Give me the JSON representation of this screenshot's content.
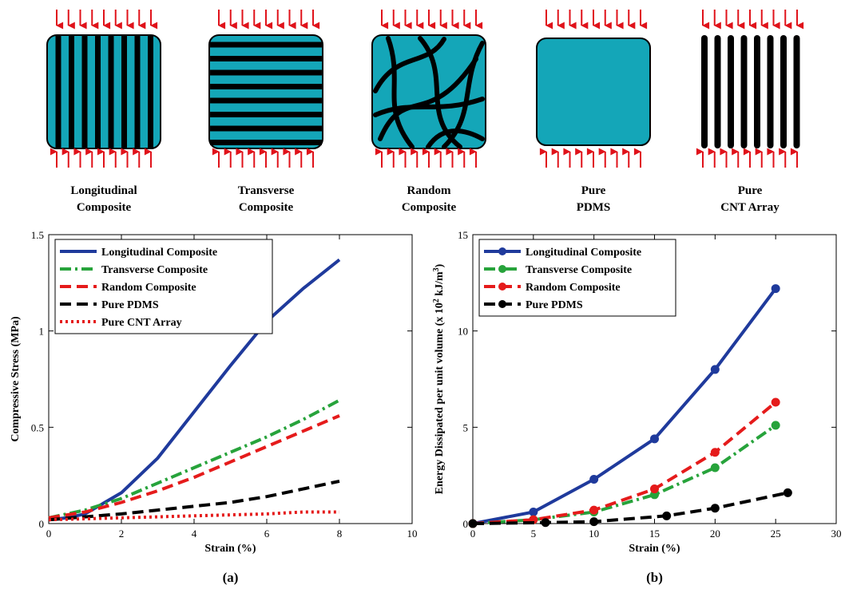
{
  "schematics": [
    {
      "line1": "Longitudinal",
      "line2": "Composite"
    },
    {
      "line1": "Transverse",
      "line2": "Composite"
    },
    {
      "line1": "Random",
      "line2": "Composite"
    },
    {
      "line1": "Pure",
      "line2": "PDMS"
    },
    {
      "line1": "Pure",
      "line2": "CNT Array"
    }
  ],
  "colors": {
    "teal": "#14a6b8",
    "arrow": "#e0121a",
    "blue": "#1f3a9c",
    "green": "#27a33b",
    "red": "#e51b1b",
    "black": "#000000"
  },
  "chart_data": [
    {
      "type": "line",
      "panel_label": "(a)",
      "xlabel": "Strain (%)",
      "ylabel": "Compressive Stress (MPa)",
      "xlim": [
        0,
        10
      ],
      "ylim": [
        0,
        1.5
      ],
      "xticks": [
        0,
        2,
        4,
        6,
        8,
        10
      ],
      "yticks": [
        0,
        0.5,
        1,
        1.5
      ],
      "ytick_labels": [
        "0",
        "0.5",
        "1",
        "1.5"
      ],
      "legend_position": "top-left",
      "series": [
        {
          "name": "Longitudinal Composite",
          "color": "#1f3a9c",
          "dash": "solid",
          "markers": false,
          "points": [
            [
              0,
              0.02
            ],
            [
              0.5,
              0.03
            ],
            [
              1,
              0.05
            ],
            [
              2,
              0.16
            ],
            [
              3,
              0.34
            ],
            [
              4,
              0.58
            ],
            [
              5,
              0.82
            ],
            [
              6,
              1.05
            ],
            [
              7,
              1.22
            ],
            [
              8,
              1.37
            ]
          ]
        },
        {
          "name": "Transverse Composite",
          "color": "#27a33b",
          "dash": "dashdot",
          "markers": false,
          "points": [
            [
              0,
              0.03
            ],
            [
              1,
              0.07
            ],
            [
              2,
              0.13
            ],
            [
              3,
              0.21
            ],
            [
              4,
              0.29
            ],
            [
              5,
              0.37
            ],
            [
              6,
              0.45
            ],
            [
              7,
              0.54
            ],
            [
              8,
              0.64
            ]
          ]
        },
        {
          "name": "Random Composite",
          "color": "#e51b1b",
          "dash": "dashed",
          "markers": false,
          "points": [
            [
              0,
              0.03
            ],
            [
              1,
              0.06
            ],
            [
              2,
              0.11
            ],
            [
              3,
              0.17
            ],
            [
              4,
              0.24
            ],
            [
              5,
              0.32
            ],
            [
              6,
              0.4
            ],
            [
              7,
              0.48
            ],
            [
              8,
              0.56
            ]
          ]
        },
        {
          "name": "Pure PDMS",
          "color": "#000000",
          "dash": "dashed",
          "markers": false,
          "points": [
            [
              0,
              0.02
            ],
            [
              2,
              0.05
            ],
            [
              3,
              0.07
            ],
            [
              4,
              0.09
            ],
            [
              5,
              0.11
            ],
            [
              6,
              0.14
            ],
            [
              7,
              0.18
            ],
            [
              8,
              0.22
            ]
          ]
        },
        {
          "name": "Pure CNT Array",
          "color": "#e51b1b",
          "dash": "dotted",
          "markers": false,
          "points": [
            [
              0,
              0.02
            ],
            [
              2,
              0.03
            ],
            [
              4,
              0.04
            ],
            [
              6,
              0.05
            ],
            [
              7,
              0.06
            ],
            [
              8,
              0.06
            ]
          ]
        }
      ]
    },
    {
      "type": "line",
      "panel_label": "(b)",
      "xlabel": "Strain (%)",
      "ylabel_parts": [
        "Energy Dissipated per unit volume (x 10",
        "2",
        " kJ/m",
        "3",
        ")"
      ],
      "xlim": [
        0,
        30
      ],
      "ylim": [
        0,
        15
      ],
      "xticks": [
        0,
        5,
        10,
        15,
        20,
        25,
        30
      ],
      "yticks": [
        0,
        5,
        10,
        15
      ],
      "ytick_labels": [
        "0",
        "5",
        "10",
        "15"
      ],
      "legend_position": "top-left",
      "series": [
        {
          "name": "Longitudinal Composite",
          "color": "#1f3a9c",
          "dash": "solid",
          "markers": true,
          "points": [
            [
              0,
              0
            ],
            [
              5,
              0.6
            ],
            [
              10,
              2.3
            ],
            [
              15,
              4.4
            ],
            [
              20,
              8.0
            ],
            [
              25,
              12.2
            ]
          ]
        },
        {
          "name": "Transverse Composite",
          "color": "#27a33b",
          "dash": "dashdot",
          "markers": true,
          "points": [
            [
              0,
              0
            ],
            [
              5,
              0.2
            ],
            [
              10,
              0.6
            ],
            [
              15,
              1.5
            ],
            [
              20,
              2.9
            ],
            [
              25,
              5.1
            ]
          ]
        },
        {
          "name": "Random Composite",
          "color": "#e51b1b",
          "dash": "dashed",
          "markers": true,
          "points": [
            [
              0,
              0
            ],
            [
              5,
              0.2
            ],
            [
              10,
              0.7
            ],
            [
              15,
              1.8
            ],
            [
              20,
              3.7
            ],
            [
              25,
              6.3
            ]
          ]
        },
        {
          "name": "Pure PDMS",
          "color": "#000000",
          "dash": "dashed",
          "markers": true,
          "points": [
            [
              0,
              0
            ],
            [
              6,
              0.05
            ],
            [
              10,
              0.1
            ],
            [
              16,
              0.4
            ],
            [
              20,
              0.8
            ],
            [
              26,
              1.6
            ]
          ]
        }
      ]
    }
  ]
}
